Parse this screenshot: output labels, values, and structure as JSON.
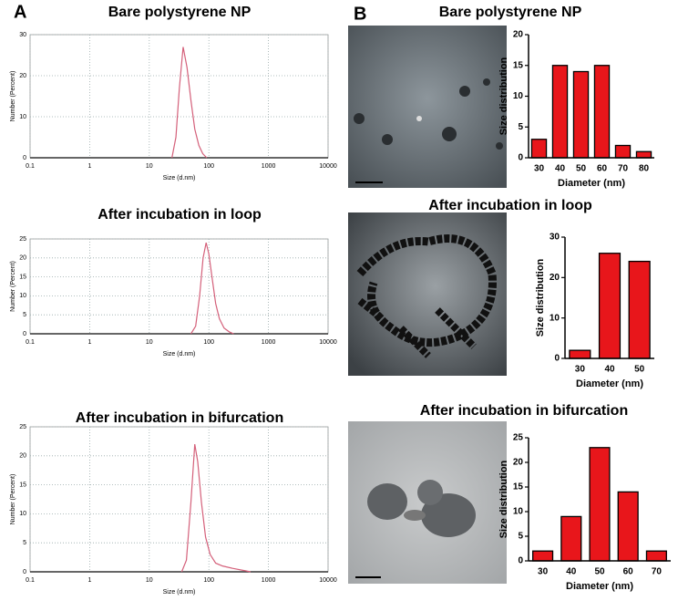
{
  "panel_labels": [
    "A",
    "B"
  ],
  "chart_data": [
    {
      "type": "line",
      "title": "Bare polystyrene NP",
      "xlabel": "Size (d.nm)",
      "ylabel": "Number (Percent)",
      "log_x": true,
      "grid": true,
      "xlim": [
        0.1,
        10000
      ],
      "xticks": [
        0.1,
        1,
        10,
        100,
        1000,
        10000
      ],
      "ylim": [
        0,
        30
      ],
      "yticks": [
        0,
        10,
        20,
        30
      ],
      "series": [
        {
          "color": "#d4607a",
          "x": [
            24,
            28,
            32,
            37,
            43,
            50,
            58,
            68,
            79,
            92
          ],
          "values": [
            0,
            5,
            17,
            27,
            22,
            14,
            7,
            3,
            1,
            0
          ]
        }
      ]
    },
    {
      "type": "line",
      "title": "After incubation in loop",
      "xlabel": "Size (d.nm)",
      "ylabel": "Number (Percent)",
      "log_x": true,
      "grid": true,
      "xlim": [
        0.1,
        10000
      ],
      "xticks": [
        0.1,
        1,
        10,
        100,
        1000,
        10000
      ],
      "ylim": [
        0,
        25
      ],
      "yticks": [
        0,
        5,
        10,
        15,
        20,
        25
      ],
      "series": [
        {
          "color": "#d4607a",
          "x": [
            50,
            60,
            70,
            80,
            90,
            100,
            115,
            130,
            150,
            180,
            220,
            260
          ],
          "values": [
            0,
            2,
            10,
            20,
            24,
            21,
            14,
            8,
            4,
            1.5,
            0.5,
            0
          ]
        }
      ]
    },
    {
      "type": "line",
      "title": "After incubation in bifurcation",
      "xlabel": "Size (d.nm)",
      "ylabel": "Number (Percent)",
      "log_x": true,
      "grid": true,
      "xlim": [
        0.1,
        10000
      ],
      "xticks": [
        0.1,
        1,
        10,
        100,
        1000,
        10000
      ],
      "ylim": [
        0,
        25
      ],
      "yticks": [
        0,
        5,
        10,
        15,
        20,
        25
      ],
      "series": [
        {
          "color": "#d4607a",
          "x": [
            35,
            42,
            50,
            58,
            65,
            75,
            88,
            105,
            130,
            170,
            250,
            400,
            500
          ],
          "values": [
            0,
            2,
            12,
            22,
            19,
            12,
            6,
            3,
            1.5,
            1,
            0.6,
            0.2,
            0
          ]
        }
      ]
    },
    {
      "type": "bar",
      "title": "Bare polystyrene NP",
      "xlabel": "Diameter (nm)",
      "ylabel": "Size distribution",
      "color": "#e8161b",
      "categories": [
        "30",
        "40",
        "50",
        "60",
        "70",
        "80"
      ],
      "values": [
        3,
        15,
        14,
        15,
        2,
        1
      ],
      "ylim": [
        0,
        20
      ],
      "yticks": [
        0,
        5,
        10,
        15,
        20
      ]
    },
    {
      "type": "bar",
      "title": "After incubation in loop",
      "xlabel": "Diameter (nm)",
      "ylabel": "Size distribution",
      "color": "#e8161b",
      "categories": [
        "30",
        "40",
        "50"
      ],
      "values": [
        2,
        26,
        24
      ],
      "ylim": [
        0,
        30
      ],
      "yticks": [
        0,
        10,
        20,
        30
      ]
    },
    {
      "type": "bar",
      "title": "After incubation in bifurcation",
      "xlabel": "Diameter (nm)",
      "ylabel": "Size distribution",
      "color": "#e8161b",
      "categories": [
        "30",
        "40",
        "50",
        "60",
        "70"
      ],
      "values": [
        2,
        9,
        23,
        14,
        2
      ],
      "ylim": [
        0,
        25
      ],
      "yticks": [
        0,
        5,
        10,
        15,
        20,
        25
      ]
    }
  ]
}
